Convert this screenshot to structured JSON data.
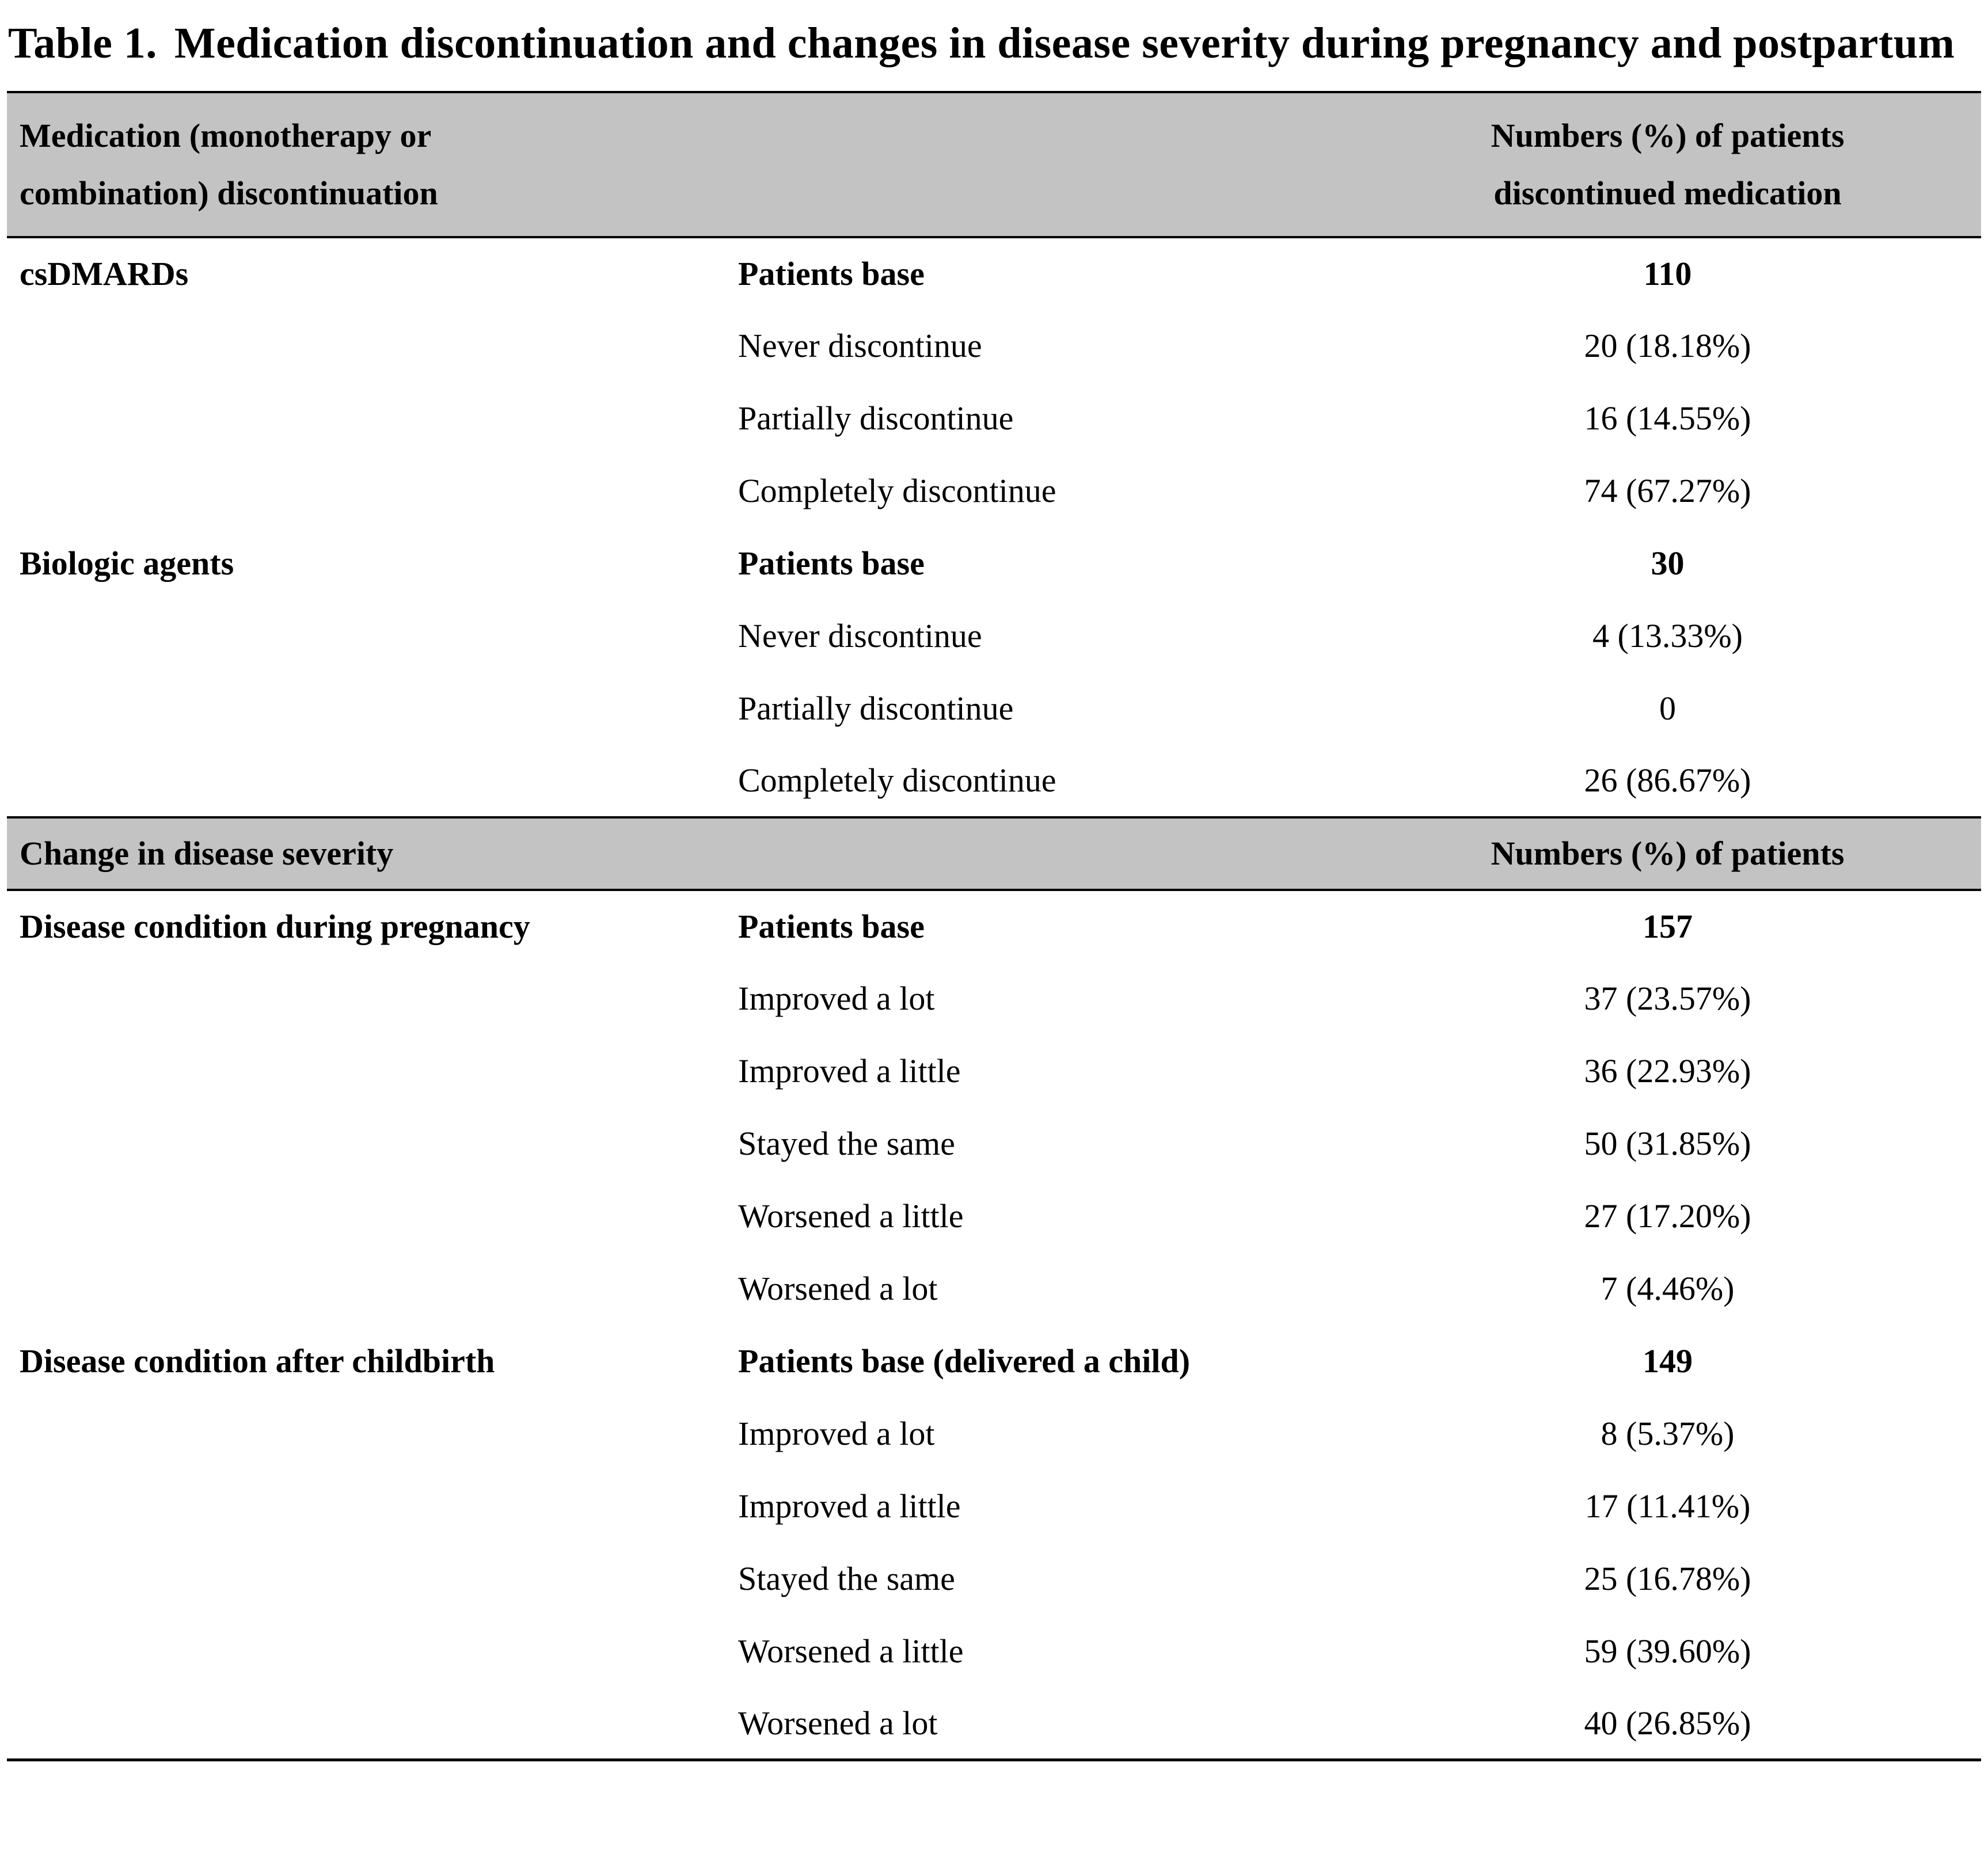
{
  "colors": {
    "header_bg": "#c3c3c3"
  },
  "title": {
    "label": "Table 1.",
    "text": "Medication discontinuation and changes in disease severity during pregnancy and postpartum"
  },
  "header1": {
    "left_line1": "Medication (monotherapy or",
    "left_line2": "combination) discontinuation",
    "right_line1": "Numbers (%) of patients",
    "right_line2": "discontinued medication"
  },
  "header2": {
    "left": "Change in disease severity",
    "right": "Numbers (%) of patients"
  },
  "rows": [
    {
      "category": "csDMARDs",
      "label": "Patients base",
      "value": "110"
    },
    {
      "category": "",
      "label": "Never discontinue",
      "value": "20 (18.18%)"
    },
    {
      "category": "",
      "label": "Partially discontinue",
      "value": "16 (14.55%)"
    },
    {
      "category": "",
      "label": "Completely discontinue",
      "value": "74 (67.27%)"
    },
    {
      "category": "Biologic agents",
      "label": "Patients base",
      "value": "30"
    },
    {
      "category": "",
      "label": "Never discontinue",
      "value": "4 (13.33%)"
    },
    {
      "category": "",
      "label": "Partially discontinue",
      "value": "0"
    },
    {
      "category": "",
      "label": "Completely discontinue",
      "value": "26 (86.67%)"
    },
    {
      "category": "Disease condition during pregnancy",
      "label": "Patients base",
      "value": "157"
    },
    {
      "category": "",
      "label": "Improved a lot",
      "value": "37 (23.57%)"
    },
    {
      "category": "",
      "label": "Improved a little",
      "value": "36 (22.93%)"
    },
    {
      "category": "",
      "label": "Stayed the same",
      "value": "50 (31.85%)"
    },
    {
      "category": "",
      "label": "Worsened a little",
      "value": "27 (17.20%)"
    },
    {
      "category": "",
      "label": "Worsened a lot",
      "value": "7 (4.46%)"
    },
    {
      "category": "Disease condition after childbirth",
      "label": "Patients base (delivered a child)",
      "value": "149"
    },
    {
      "category": "",
      "label": "Improved a lot",
      "value": "8 (5.37%)"
    },
    {
      "category": "",
      "label": "Improved a little",
      "value": "17 (11.41%)"
    },
    {
      "category": "",
      "label": "Stayed the same",
      "value": "25 (16.78%)"
    },
    {
      "category": "",
      "label": "Worsened a little",
      "value": "59 (39.60%)"
    },
    {
      "category": "",
      "label": "Worsened a lot",
      "value": "40 (26.85%)"
    }
  ],
  "chart_data": {
    "type": "table",
    "title": "Table 1. Medication discontinuation and changes in disease severity during pregnancy and postpartum",
    "sections": [
      {
        "header": [
          "Medication (monotherapy or combination) discontinuation",
          "Numbers (%) of patients discontinued medication"
        ],
        "groups": [
          {
            "category": "csDMARDs",
            "patients_base": 110,
            "rows": [
              [
                "Never discontinue",
                20,
                "18.18%"
              ],
              [
                "Partially discontinue",
                16,
                "14.55%"
              ],
              [
                "Completely discontinue",
                74,
                "67.27%"
              ]
            ]
          },
          {
            "category": "Biologic agents",
            "patients_base": 30,
            "rows": [
              [
                "Never discontinue",
                4,
                "13.33%"
              ],
              [
                "Partially discontinue",
                0,
                ""
              ],
              [
                "Completely discontinue",
                26,
                "86.67%"
              ]
            ]
          }
        ]
      },
      {
        "header": [
          "Change in disease severity",
          "Numbers (%) of patients"
        ],
        "groups": [
          {
            "category": "Disease condition during pregnancy",
            "patients_base": 157,
            "rows": [
              [
                "Improved a lot",
                37,
                "23.57%"
              ],
              [
                "Improved a little",
                36,
                "22.93%"
              ],
              [
                "Stayed the same",
                50,
                "31.85%"
              ],
              [
                "Worsened a little",
                27,
                "17.20%"
              ],
              [
                "Worsened a lot",
                7,
                "4.46%"
              ]
            ]
          },
          {
            "category": "Disease condition after childbirth",
            "patients_base": 149,
            "patients_base_note": "delivered a child",
            "rows": [
              [
                "Improved a lot",
                8,
                "5.37%"
              ],
              [
                "Improved a little",
                17,
                "11.41%"
              ],
              [
                "Stayed the same",
                25,
                "16.78%"
              ],
              [
                "Worsened a little",
                59,
                "39.60%"
              ],
              [
                "Worsened a lot",
                40,
                "26.85%"
              ]
            ]
          }
        ]
      }
    ]
  }
}
